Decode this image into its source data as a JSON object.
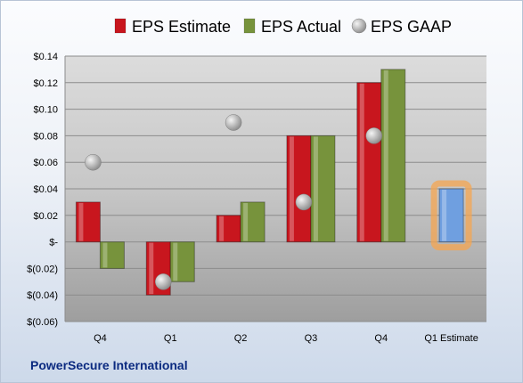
{
  "footer": {
    "company": "PowerSecure International"
  },
  "colors": {
    "estimate": "#c8161e",
    "actual": "#77933c",
    "forecast": "#6f9fe0",
    "gaap": "#a6a6a6",
    "highlight": "#f5a650"
  },
  "chart_data": {
    "type": "bar",
    "categories": [
      "Q4",
      "Q1",
      "Q2",
      "Q3",
      "Q4",
      "Q1 Estimate"
    ],
    "series": [
      {
        "name": "EPS Estimate",
        "type": "bar",
        "values": [
          0.03,
          -0.04,
          0.02,
          0.08,
          0.12,
          0.04
        ]
      },
      {
        "name": "EPS Actual",
        "type": "bar",
        "values": [
          -0.02,
          -0.03,
          0.03,
          0.08,
          0.13,
          null
        ]
      },
      {
        "name": "EPS GAAP",
        "type": "scatter",
        "values": [
          0.06,
          -0.03,
          0.09,
          0.03,
          0.08,
          null
        ]
      }
    ],
    "ylim": [
      -0.06,
      0.14
    ],
    "yticks": [
      0.14,
      0.12,
      0.1,
      0.08,
      0.06,
      0.04,
      0.02,
      0,
      -0.02,
      -0.04,
      -0.06
    ],
    "ytick_labels": [
      "$0.14",
      "$0.12",
      "$0.10",
      "$0.08",
      "$0.06",
      "$0.04",
      "$0.02",
      "$-",
      "$(0.02)",
      "$(0.04)",
      "$(0.06)"
    ],
    "highlighted_category": "Q1 Estimate",
    "legend_position": "top",
    "grid": true
  }
}
